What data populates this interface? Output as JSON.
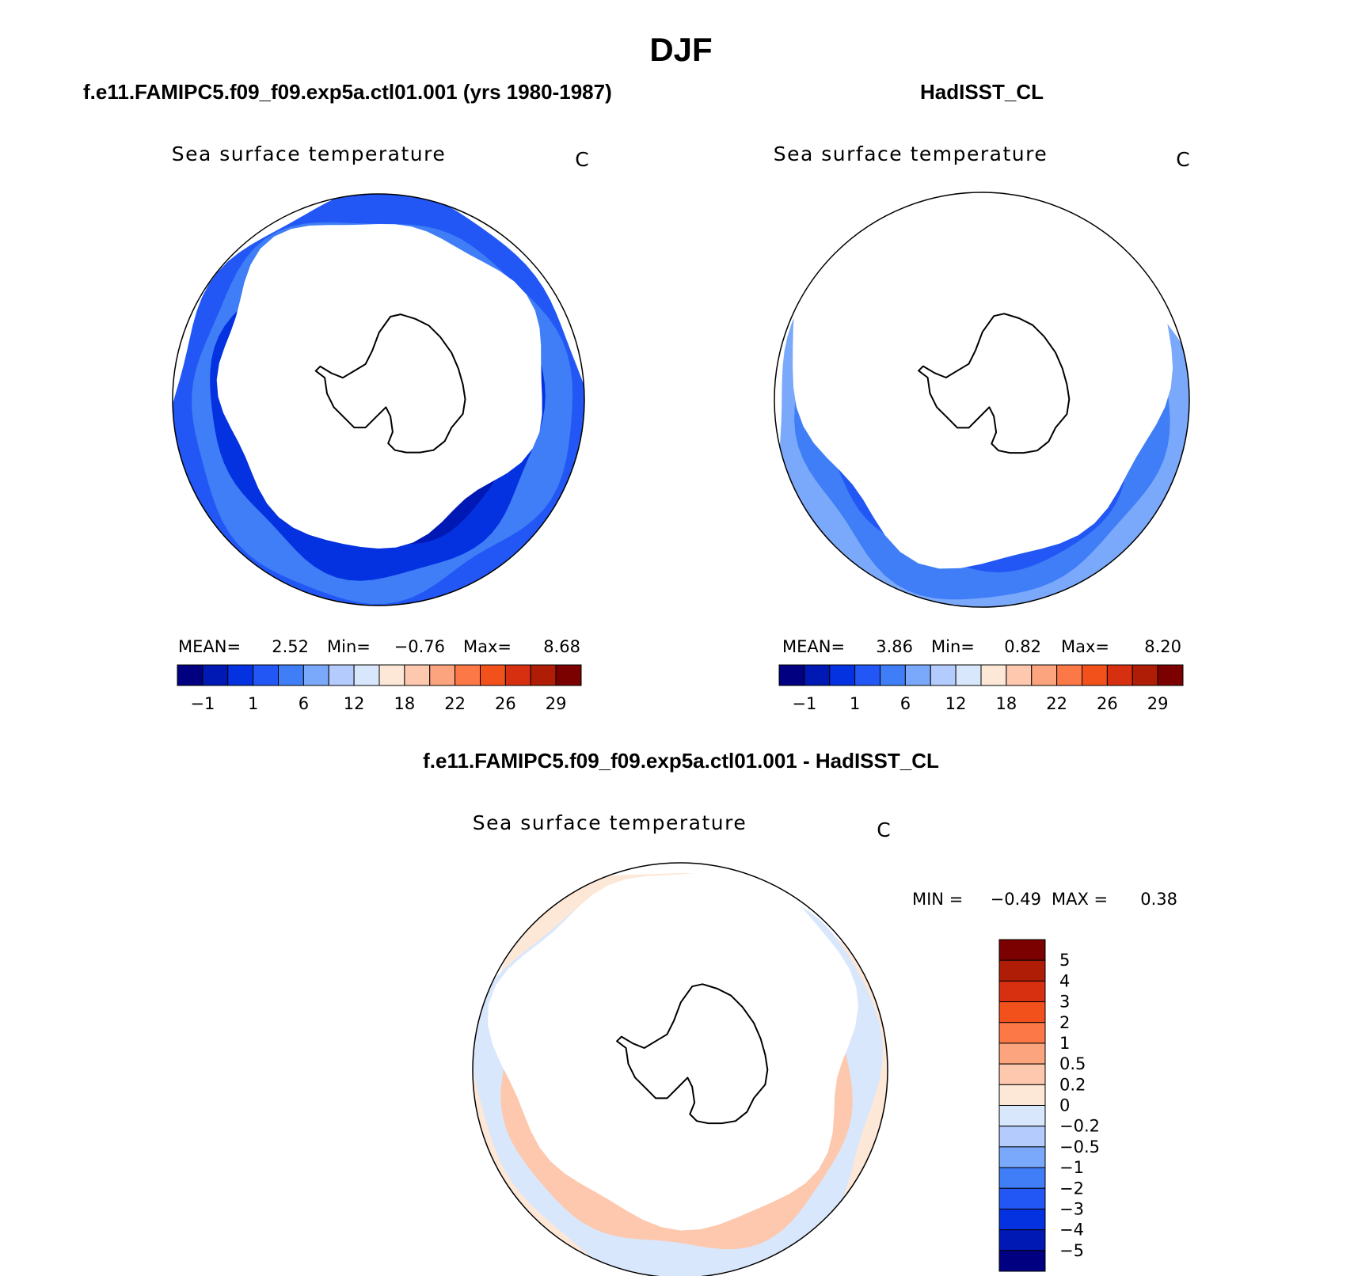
{
  "figure": {
    "title": "DJF"
  },
  "colors": {
    "ocean_scale": [
      "#000080",
      "#0018b4",
      "#0432e0",
      "#2257f5",
      "#3f7ef6",
      "#7aa8fa",
      "#b4ccfd",
      "#d9e7fd",
      "#fde7d6",
      "#fdc8ad",
      "#fca47e",
      "#fc7847",
      "#f2511c",
      "#d63010",
      "#b01d07",
      "#7b0000"
    ],
    "land": "#ffffff",
    "coast": "#000000",
    "ice": "#ffffff"
  },
  "chart_data": [
    {
      "type": "heatmap",
      "panel_title": "f.e11.FAMIPC5.f09_f09.exp5a.ctl01.001 (yrs 1980-1987)",
      "variable": "Sea surface temperature",
      "units": "C",
      "projection": "south-polar-stereographic",
      "stats": {
        "mean_label": "MEAN=",
        "mean": "2.52",
        "min_label": "Min=",
        "min": "−0.76",
        "max_label": "Max=",
        "max": "8.68"
      },
      "colorbar": {
        "orientation": "horizontal",
        "ticks": [
          "−1",
          "1",
          "6",
          "12",
          "18",
          "22",
          "26",
          "29"
        ]
      },
      "bands": [
        {
          "level": 3,
          "extent": 0.97
        },
        {
          "level": 4,
          "extent": 0.88
        },
        {
          "level": 2,
          "extent": 0.77
        },
        {
          "level": 1,
          "extent": 0.63
        }
      ]
    },
    {
      "type": "heatmap",
      "panel_title": "HadISST_CL",
      "variable": "Sea surface temperature",
      "units": "C",
      "projection": "south-polar-stereographic",
      "stats": {
        "mean_label": "MEAN=",
        "mean": "3.86",
        "min_label": "Min=",
        "min": "0.82",
        "max_label": "Max=",
        "max": "8.20"
      },
      "colorbar": {
        "orientation": "horizontal",
        "ticks": [
          "−1",
          "1",
          "6",
          "12",
          "18",
          "22",
          "26",
          "29"
        ]
      },
      "bands": [
        {
          "level": 5,
          "extent": 0.97
        },
        {
          "level": 4,
          "extent": 0.86
        },
        {
          "level": 3,
          "extent": 0.74
        }
      ]
    },
    {
      "type": "heatmap",
      "panel_title": "f.e11.FAMIPC5.f09_f09.exp5a.ctl01.001 - HadISST_CL",
      "variable": "Sea surface temperature",
      "units": "C",
      "projection": "south-polar-stereographic",
      "stats": {
        "min_label": "MIN =",
        "min": "−0.49",
        "max_label": "MAX =",
        "max": "0.38"
      },
      "colorbar": {
        "orientation": "vertical",
        "colors": [
          "#7b0000",
          "#b01d07",
          "#d63010",
          "#f2511c",
          "#fc7847",
          "#fca47e",
          "#fdc8ad",
          "#fde7d6",
          "#d9e7fd",
          "#b4ccfd",
          "#7aa8fa",
          "#3f7ef6",
          "#2257f5",
          "#0432e0",
          "#0018b4",
          "#000080"
        ],
        "ticks": [
          "5",
          "4",
          "3",
          "2",
          "1",
          "0.5",
          "0.2",
          "0",
          "−0.2",
          "−0.5",
          "−1",
          "−2",
          "−3",
          "−4",
          "−5"
        ]
      },
      "bands": [
        {
          "level": 8,
          "extent": 0.97
        },
        {
          "level": 7,
          "extent": 0.93
        },
        {
          "level": 9,
          "extent": 0.8
        }
      ]
    }
  ]
}
